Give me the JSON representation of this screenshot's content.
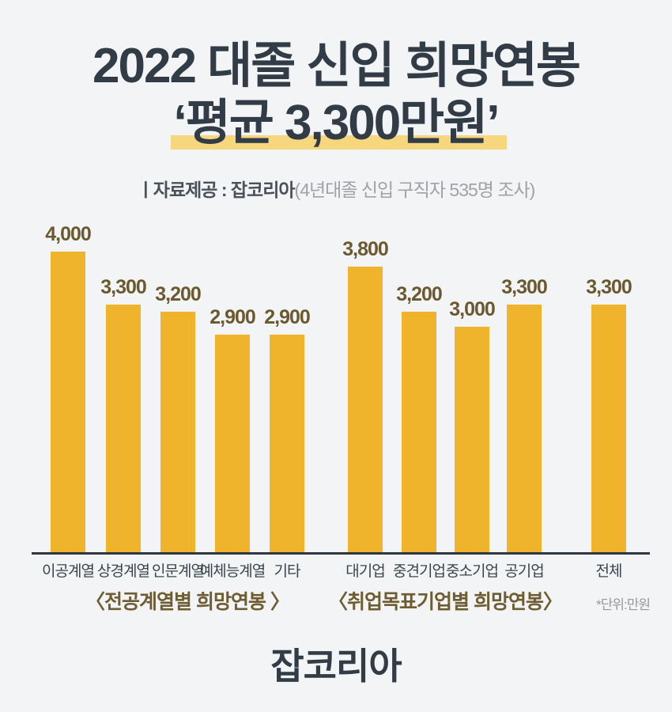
{
  "colors": {
    "background": "#F3F4F5",
    "title": "#313C46",
    "highlight": "#F6D77D",
    "bar": "#F0B32C",
    "value_label": "#6A592F",
    "chart_title": "#6E5D33",
    "category_label": "#3B444C",
    "axis": "#2E3840",
    "subtitle_dark": "#4B5158",
    "subtitle_light": "#9FA3A7",
    "unit_note": "#999999",
    "logo": "#313C46"
  },
  "header": {
    "title_line1": "2022 대졸 신입 희망연봉",
    "title_line2": "‘평균 3,300만원’",
    "source_label": "ㅣ자료제공 : 잡코리아",
    "source_note": "(4년대졸 신입 구직자 535명 조사)"
  },
  "chart_data": [
    {
      "type": "bar",
      "title": "〈전공계열별 희망연봉 〉",
      "categories": [
        "이공계열",
        "상경계열",
        "인문계열",
        "예체능계열",
        "기타"
      ],
      "values": [
        4000,
        3300,
        3200,
        2900,
        2900
      ],
      "value_labels": [
        "4,000",
        "3,300",
        "3,200",
        "2,900",
        "2,900"
      ],
      "ylim": [
        0,
        4000
      ],
      "unit": "만원",
      "bar_color": "#F0B32C",
      "grid": false,
      "legend": false
    },
    {
      "type": "bar",
      "title": "〈취업목표기업별 희망연봉〉",
      "categories": [
        "대기업",
        "중견기업",
        "중소기업",
        "공기업",
        "전체"
      ],
      "values": [
        3800,
        3200,
        3000,
        3300,
        3300
      ],
      "value_labels": [
        "3,800",
        "3,200",
        "3,000",
        "3,300",
        "3,300"
      ],
      "ylim": [
        0,
        4000
      ],
      "unit": "만원",
      "bar_color": "#F0B32C",
      "grid": false,
      "legend": false
    }
  ],
  "unit_note": "*단위:만원",
  "footer": {
    "logo": "잡코리아"
  }
}
